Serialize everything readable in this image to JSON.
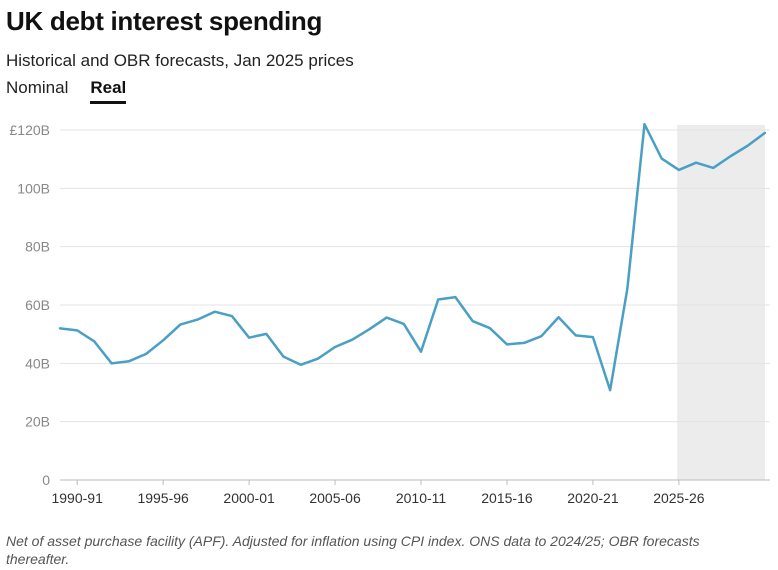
{
  "title": "UK debt interest spending",
  "subtitle": "Historical and OBR forecasts, Jan 2025 prices",
  "tabs": [
    {
      "label": "Nominal",
      "active": false
    },
    {
      "label": "Real",
      "active": true
    }
  ],
  "footnote": "Net of asset purchase facility (APF). Adjusted for inflation using CPI index. ONS data to 2024/25; OBR forecasts thereafter.",
  "colors": {
    "line": "#4a9fc4",
    "forecast_shade": "#ececec",
    "grid": "#e3e3e3"
  },
  "chart_data": {
    "type": "line",
    "title": "UK debt interest spending",
    "xlabel": "",
    "ylabel": "",
    "ylim": [
      0,
      120
    ],
    "yticks": [
      0,
      20,
      40,
      60,
      80,
      100,
      120
    ],
    "ytick_labels": [
      "0",
      "20B",
      "40B",
      "60B",
      "80B",
      "100B",
      "£120B"
    ],
    "xticks": [
      {
        "label": "1990-91",
        "year": 1990
      },
      {
        "label": "1995-96",
        "year": 1995
      },
      {
        "label": "2000-01",
        "year": 2000
      },
      {
        "label": "2005-06",
        "year": 2005
      },
      {
        "label": "2010-11",
        "year": 2010
      },
      {
        "label": "2015-16",
        "year": 2015
      },
      {
        "label": "2020-21",
        "year": 2020
      },
      {
        "label": "2025-26",
        "year": 2025
      }
    ],
    "xlim": [
      1989,
      2030.3
    ],
    "forecast_start": 2025,
    "series": [
      {
        "name": "Real debt interest spending",
        "x": [
          1989,
          1990,
          1991,
          1992,
          1993,
          1994,
          1995,
          1996,
          1997,
          1998,
          1999,
          2000,
          2001,
          2002,
          2003,
          2004,
          2005,
          2006,
          2007,
          2008,
          2009,
          2010,
          2011,
          2012,
          2013,
          2014,
          2015,
          2016,
          2017,
          2018,
          2019,
          2020,
          2021,
          2022,
          2023,
          2024,
          2025,
          2026,
          2027,
          2028,
          2029,
          2030
        ],
        "values": [
          52,
          51.3,
          47.5,
          40,
          40.7,
          43.2,
          47.9,
          53.3,
          55,
          57.7,
          56.2,
          48.8,
          50.1,
          42.3,
          39.5,
          41.6,
          45.6,
          48.1,
          51.7,
          55.7,
          53.5,
          44,
          61.9,
          62.7,
          54.5,
          52.1,
          46.5,
          47,
          49.3,
          55.8,
          49.6,
          49,
          30.8,
          65.5,
          122,
          110.2,
          106.3,
          108.8,
          107,
          111,
          114.6,
          119
        ]
      }
    ]
  }
}
